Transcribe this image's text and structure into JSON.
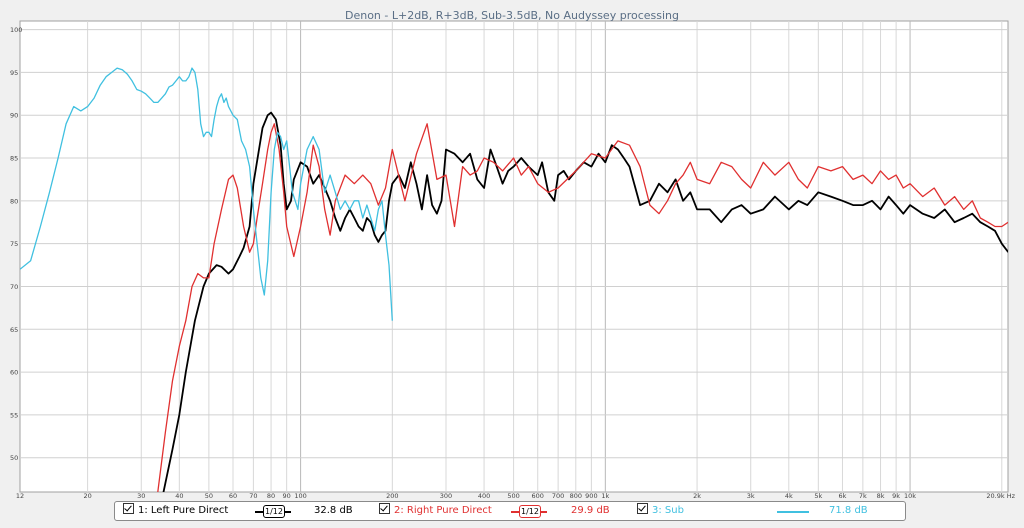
{
  "chart_data": {
    "type": "line",
    "title": "Denon - L+2dB, R+3dB, Sub-3.5dB, No Audyssey processing",
    "xscale": "log",
    "xlim": [
      12,
      20960
    ],
    "ylim": [
      46,
      101
    ],
    "grid": true,
    "x_tick_labels": [
      {
        "v": 12,
        "t": "12"
      },
      {
        "v": 20,
        "t": "20"
      },
      {
        "v": 30,
        "t": "30"
      },
      {
        "v": 40,
        "t": "40"
      },
      {
        "v": 50,
        "t": "50"
      },
      {
        "v": 60,
        "t": "60"
      },
      {
        "v": 70,
        "t": "70"
      },
      {
        "v": 80,
        "t": "80"
      },
      {
        "v": 90,
        "t": "90"
      },
      {
        "v": 100,
        "t": "100"
      },
      {
        "v": 200,
        "t": "200"
      },
      {
        "v": 300,
        "t": "300"
      },
      {
        "v": 400,
        "t": "400"
      },
      {
        "v": 500,
        "t": "500"
      },
      {
        "v": 600,
        "t": "600"
      },
      {
        "v": 700,
        "t": "700"
      },
      {
        "v": 800,
        "t": "800"
      },
      {
        "v": 900,
        "t": "900"
      },
      {
        "v": 1000,
        "t": "1k"
      },
      {
        "v": 2000,
        "t": "2k"
      },
      {
        "v": 3000,
        "t": "3k"
      },
      {
        "v": 4000,
        "t": "4k"
      },
      {
        "v": 5000,
        "t": "5k"
      },
      {
        "v": 6000,
        "t": "6k"
      },
      {
        "v": 7000,
        "t": "7k"
      },
      {
        "v": 8000,
        "t": "8k"
      },
      {
        "v": 9000,
        "t": "9k"
      },
      {
        "v": 10000,
        "t": "10k"
      },
      {
        "v": 20960,
        "t": "20.9k Hz"
      }
    ],
    "y_tick_labels": [
      {
        "v": 100,
        "t": "100"
      },
      {
        "v": 95,
        "t": "95"
      },
      {
        "v": 90,
        "t": "90"
      },
      {
        "v": 85,
        "t": "85"
      },
      {
        "v": 80,
        "t": "80"
      },
      {
        "v": 75,
        "t": "75"
      },
      {
        "v": 70,
        "t": "70"
      },
      {
        "v": 65,
        "t": "65"
      },
      {
        "v": 60,
        "t": "60"
      },
      {
        "v": 55,
        "t": "55"
      },
      {
        "v": 50,
        "t": "50"
      }
    ],
    "series": [
      {
        "name": "1: Left Pure Direct",
        "color": "#000000",
        "x": [
          35,
          38,
          40,
          42,
          45,
          48,
          50,
          53,
          55,
          58,
          60,
          63,
          65,
          68,
          70,
          73,
          75,
          78,
          80,
          83,
          86,
          88,
          90,
          93,
          95,
          100,
          105,
          110,
          115,
          120,
          125,
          130,
          135,
          140,
          145,
          150,
          155,
          160,
          165,
          170,
          175,
          180,
          185,
          190,
          195,
          200,
          210,
          220,
          230,
          240,
          250,
          260,
          270,
          280,
          290,
          300,
          320,
          340,
          360,
          380,
          400,
          420,
          440,
          460,
          480,
          500,
          530,
          560,
          600,
          620,
          650,
          680,
          700,
          730,
          760,
          800,
          850,
          900,
          950,
          1000,
          1050,
          1100,
          1150,
          1200,
          1300,
          1400,
          1500,
          1600,
          1700,
          1800,
          1900,
          2000,
          2200,
          2400,
          2600,
          2800,
          3000,
          3300,
          3600,
          4000,
          4300,
          4600,
          5000,
          5500,
          6000,
          6500,
          7000,
          7500,
          8000,
          8500,
          9000,
          9500,
          10000,
          11000,
          12000,
          13000,
          14000,
          15000,
          16000,
          17000,
          18000,
          19000,
          20000,
          21000
        ],
        "y": [
          45,
          51,
          55,
          60,
          66,
          70,
          71.5,
          72.5,
          72.3,
          71.5,
          72,
          73.5,
          74.5,
          77,
          82,
          86,
          88.5,
          90,
          90.3,
          89.5,
          86.5,
          82,
          79,
          80,
          82.5,
          84.5,
          84,
          82,
          83,
          81.5,
          80,
          78,
          76.5,
          78,
          79,
          78,
          77,
          76.5,
          78,
          77.5,
          76,
          75.2,
          76,
          76.5,
          80,
          82,
          83,
          81.5,
          84.5,
          82,
          79,
          83,
          79.5,
          78.5,
          80,
          86,
          85.5,
          84.5,
          85.5,
          82.5,
          81.5,
          86,
          84,
          82,
          83.5,
          84,
          85,
          84,
          83,
          84.5,
          81,
          80,
          83,
          83.5,
          82.5,
          83.5,
          84.5,
          84,
          85.5,
          84.5,
          86.5,
          86,
          85,
          84,
          79.5,
          80,
          82,
          81,
          82.5,
          80,
          81,
          79,
          79,
          77.5,
          79,
          79.5,
          78.5,
          79,
          80.5,
          79,
          80,
          79.5,
          81,
          80.5,
          80,
          79.5,
          79.5,
          80,
          79,
          80.5,
          79.5,
          78.5,
          79.5,
          78.5,
          78,
          79,
          77.5,
          78,
          78.5,
          77.5,
          77,
          76.5,
          75,
          74
        ]
      },
      {
        "name": "2: Right Pure Direct",
        "color": "#e03030",
        "x": [
          34,
          36,
          38,
          40,
          42,
          44,
          46,
          48,
          50,
          52,
          55,
          58,
          60,
          62,
          65,
          68,
          70,
          72,
          75,
          78,
          80,
          82,
          85,
          88,
          90,
          95,
          100,
          105,
          110,
          115,
          120,
          125,
          130,
          140,
          150,
          160,
          170,
          180,
          190,
          200,
          220,
          240,
          260,
          280,
          300,
          310,
          320,
          340,
          360,
          380,
          400,
          430,
          460,
          500,
          530,
          560,
          600,
          650,
          700,
          800,
          900,
          1000,
          1100,
          1200,
          1300,
          1400,
          1500,
          1600,
          1700,
          1800,
          1900,
          2000,
          2200,
          2400,
          2600,
          2800,
          3000,
          3300,
          3600,
          4000,
          4300,
          4600,
          5000,
          5500,
          6000,
          6500,
          7000,
          7500,
          8000,
          8500,
          9000,
          9500,
          10000,
          11000,
          12000,
          13000,
          14000,
          15000,
          16000,
          17000,
          18000,
          19000,
          20000,
          21000
        ],
        "y": [
          46,
          53,
          59,
          63,
          66,
          70,
          71.5,
          71,
          71,
          75,
          79,
          82.5,
          83,
          81.5,
          77,
          74,
          75,
          78,
          82,
          86,
          88,
          89,
          86,
          81,
          77,
          73.5,
          77,
          81,
          86.5,
          84,
          79,
          76,
          80,
          83,
          82,
          83,
          82,
          79.5,
          81.5,
          86,
          80,
          85.5,
          89,
          82.5,
          83,
          80,
          77,
          84,
          83,
          83.5,
          85,
          84.5,
          83.5,
          85,
          83,
          84,
          82,
          81,
          81.5,
          83.5,
          85.5,
          85,
          87,
          86.5,
          84,
          79.5,
          78.5,
          80,
          82,
          83,
          84.5,
          82.5,
          82,
          84.5,
          84,
          82.5,
          81.5,
          84.5,
          83,
          84.5,
          82.5,
          81.5,
          84,
          83.5,
          84,
          82.5,
          83,
          82,
          83.5,
          82.5,
          83,
          81.5,
          82,
          80.5,
          81.5,
          79.5,
          80.5,
          79,
          80,
          78,
          77.5,
          77,
          77,
          77.5
        ]
      },
      {
        "name": "3: Sub",
        "color": "#40c0e0",
        "x": [
          12,
          13,
          14,
          15,
          16,
          17,
          18,
          19,
          20,
          21,
          22,
          23,
          24,
          25,
          26,
          27,
          28,
          29,
          30,
          31,
          32,
          33,
          34,
          35,
          36,
          37,
          38,
          39,
          40,
          41,
          42,
          43,
          44,
          45,
          46,
          47,
          48,
          49,
          50,
          51,
          52,
          53,
          54,
          55,
          56,
          57,
          58,
          59,
          60,
          62,
          64,
          66,
          68,
          70,
          72,
          74,
          76,
          78,
          80,
          82,
          84,
          86,
          88,
          90,
          92,
          94,
          96,
          98,
          100,
          105,
          110,
          115,
          120,
          125,
          130,
          135,
          140,
          145,
          150,
          155,
          160,
          165,
          170,
          175,
          180,
          185,
          190,
          195,
          200
        ],
        "y": [
          72,
          73,
          77,
          81,
          85,
          89,
          91,
          90.5,
          91,
          92,
          93.5,
          94.5,
          95,
          95.5,
          95.3,
          94.8,
          94,
          93,
          92.8,
          92.5,
          92,
          91.5,
          91.5,
          92,
          92.5,
          93.3,
          93.5,
          94,
          94.5,
          94,
          94,
          94.5,
          95.5,
          95,
          93,
          89,
          87.5,
          88,
          88,
          87.5,
          89.5,
          91,
          92,
          92.5,
          91.5,
          92,
          91,
          90.5,
          90,
          89.5,
          87,
          86,
          84,
          79,
          75,
          71,
          69,
          73,
          81,
          86,
          88,
          87.5,
          86,
          87,
          84,
          81,
          80,
          79,
          82,
          86,
          87.5,
          86,
          81,
          83,
          81,
          79,
          80,
          79,
          80,
          80,
          78,
          79.5,
          78,
          76.5,
          79,
          80,
          76,
          72.5,
          66
        ]
      }
    ],
    "legend": {
      "placement": "bottom",
      "items": [
        {
          "label": "1: Left Pure Direct",
          "smoothing": "1/12",
          "value": "32.8 dB",
          "color": "#000000"
        },
        {
          "label": "2: Right Pure Direct",
          "smoothing": "1/12",
          "value": "29.9 dB",
          "color": "#e03030"
        },
        {
          "label": "3: Sub",
          "value": "71.8 dB",
          "color": "#40c0e0"
        }
      ]
    }
  }
}
